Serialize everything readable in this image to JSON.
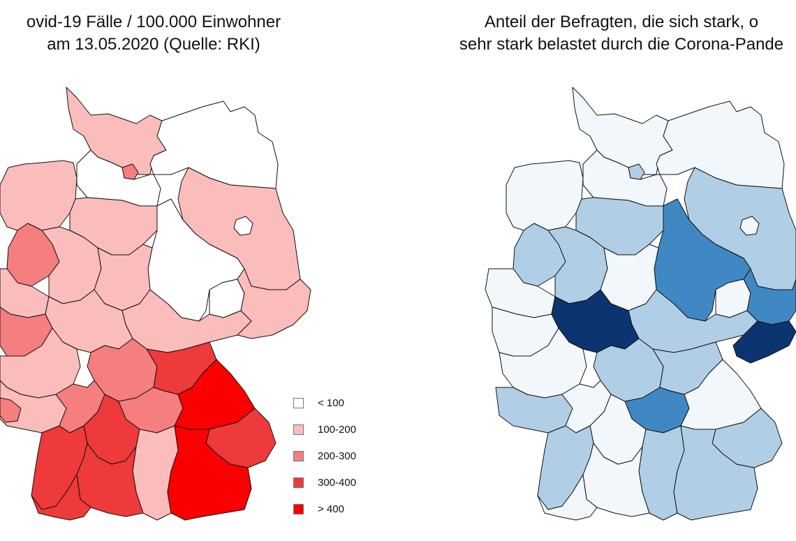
{
  "left_map": {
    "title_line1": "ovid-19 Fälle / 100.000 Einwohner",
    "title_line2": "am 13.05.2020 (Quelle: RKI)",
    "legend": [
      {
        "label": "< 100",
        "color": "#ffffff"
      },
      {
        "label": "100-200",
        "color": "#fbbcbc"
      },
      {
        "label": "200-300",
        "color": "#f57e7e"
      },
      {
        "label": "300-400",
        "color": "#ee3a3a"
      },
      {
        "label": "> 400",
        "color": "#fa0000"
      }
    ]
  },
  "right_map": {
    "title_line1": "Anteil der Befragten, die sich stark, o",
    "title_line2": "sehr stark belastet durch die Corona-Pande",
    "colors": {
      "lightest": "#f2f7fc",
      "light": "#b0cfe6",
      "medium": "#4088c4",
      "dark": "#0b3470"
    }
  },
  "colors": {
    "border": "#111111",
    "background": "#ffffff"
  }
}
